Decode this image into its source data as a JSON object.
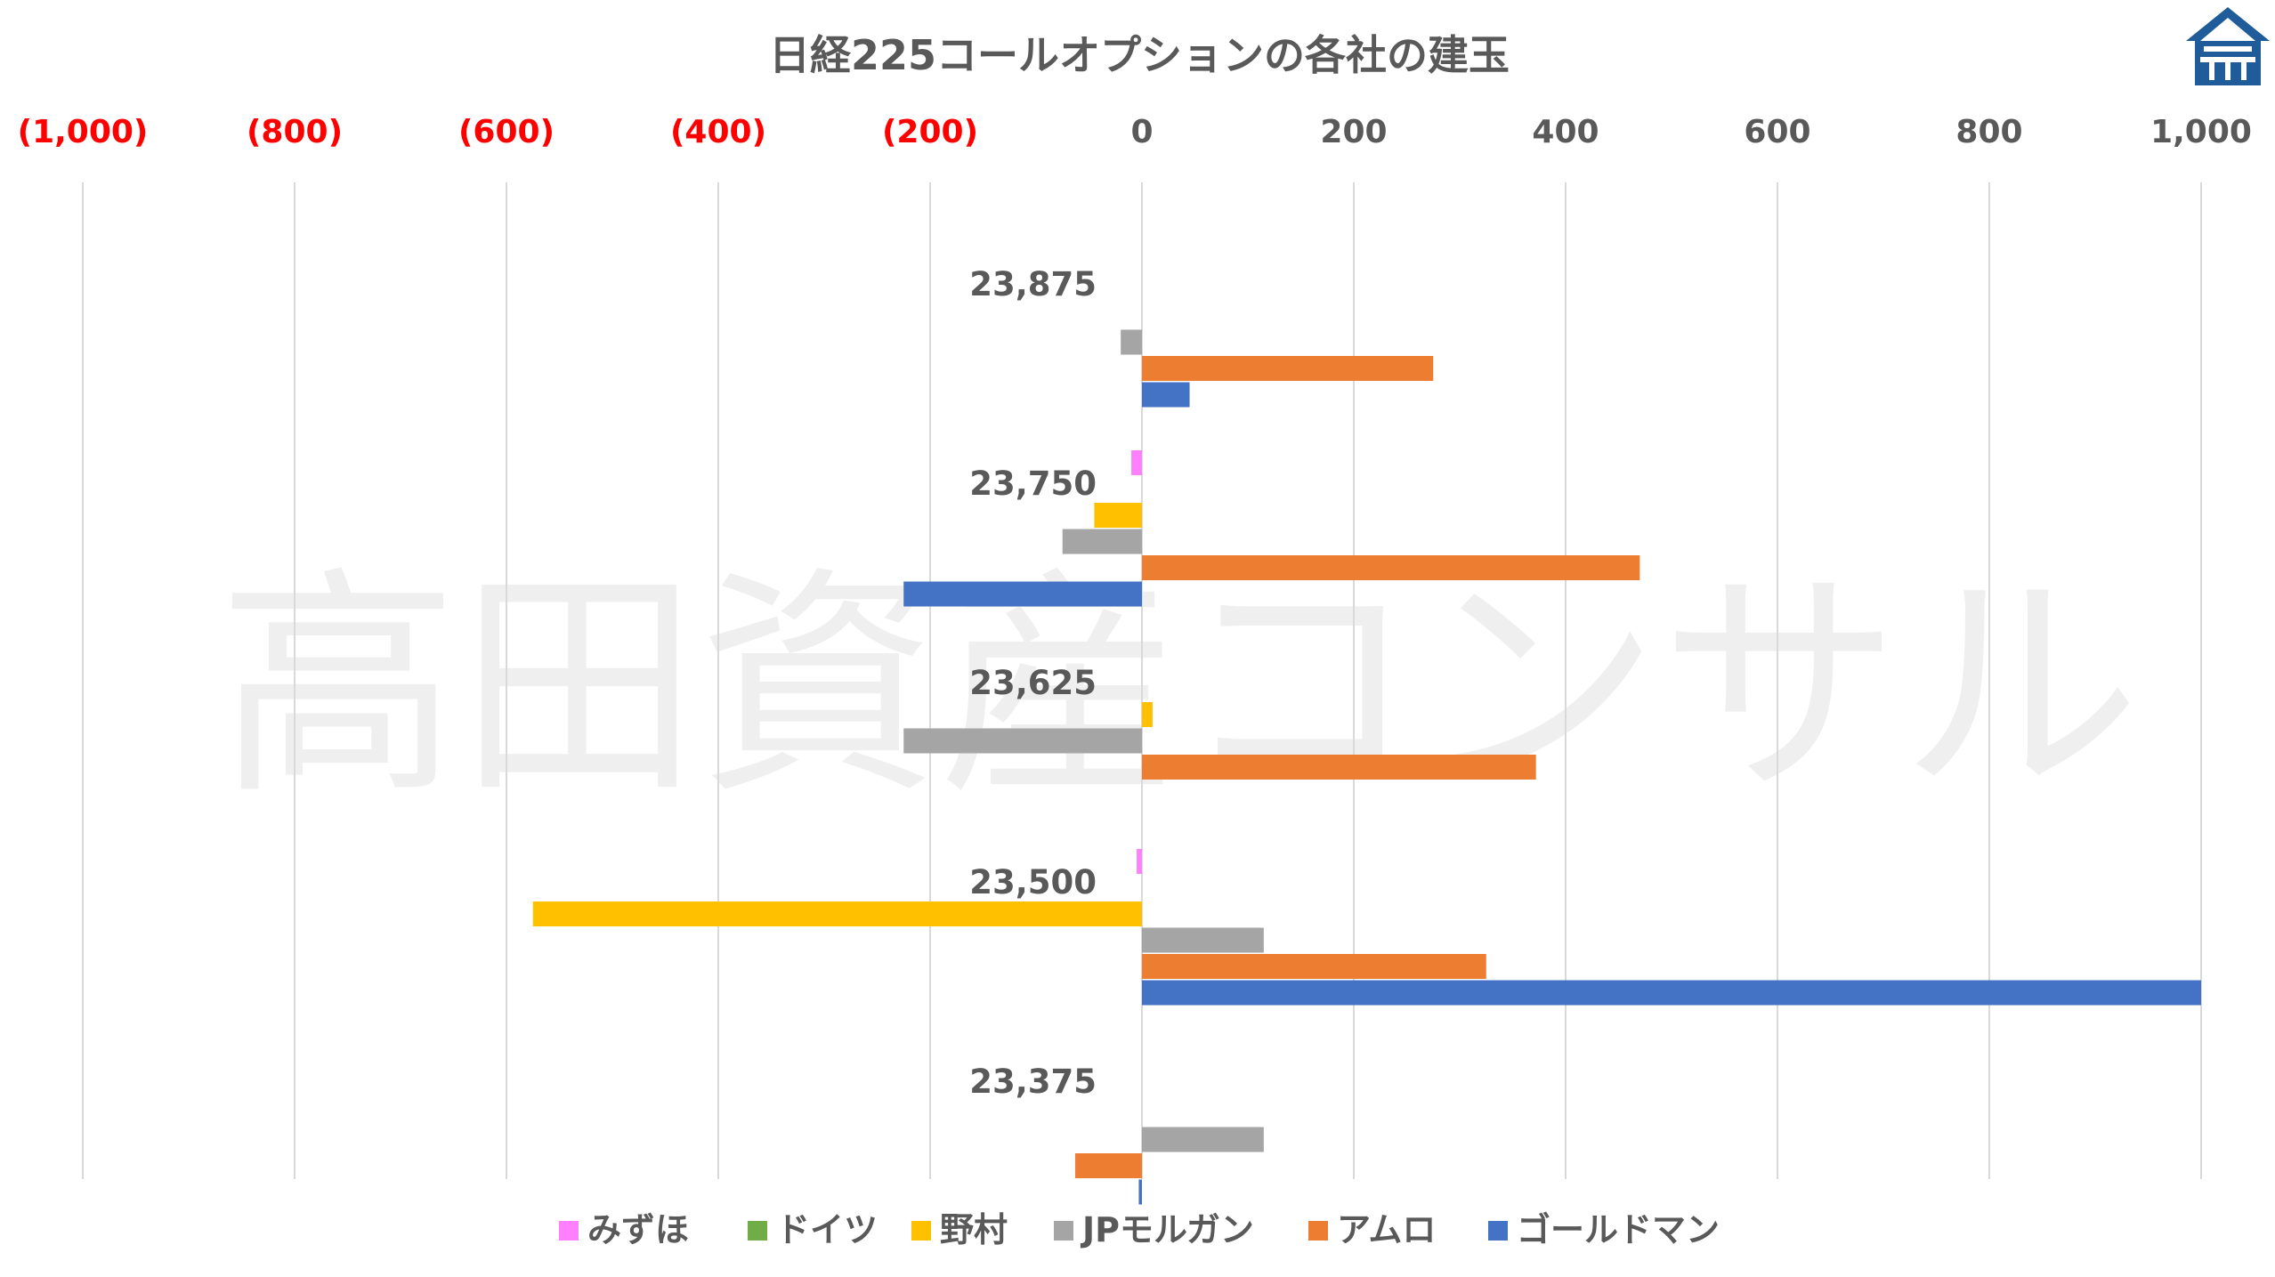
{
  "colors": {
    "title": "#595959",
    "axis_positive": "#595959",
    "axis_negative": "#ff0000",
    "grid": "#d9d9d9",
    "logo": "#1f5c99"
  },
  "logo": {
    "icon": "building-logo-icon"
  },
  "watermark": "高田資産コンサル",
  "chart_data": {
    "type": "bar",
    "orientation": "horizontal",
    "title": "日経225コールオプションの各社の建玉",
    "xlim": [
      -1000,
      1000
    ],
    "xticks": [
      -1000,
      -800,
      -600,
      -400,
      -200,
      0,
      200,
      400,
      600,
      800,
      1000
    ],
    "xtick_labels": [
      "(1,000)",
      "(800)",
      "(600)",
      "(400)",
      "(200)",
      "0",
      "200",
      "400",
      "600",
      "800",
      "1,000"
    ],
    "x_axis_position": "top",
    "grid": true,
    "legend_position": "bottom",
    "categories": [
      "23,875",
      "23,750",
      "23,625",
      "23,500",
      "23,375"
    ],
    "series": [
      {
        "name": "みずほ",
        "color": "#ff80ff",
        "values": [
          0,
          -10,
          0,
          -5,
          0
        ]
      },
      {
        "name": "ドイツ",
        "color": "#70ad47",
        "values": [
          0,
          0,
          0,
          0,
          0
        ]
      },
      {
        "name": "野村",
        "color": "#ffc000",
        "values": [
          0,
          -45,
          10,
          -575,
          0
        ]
      },
      {
        "name": "JPモルガン",
        "color": "#a5a5a5",
        "values": [
          -20,
          -75,
          -225,
          115,
          115
        ]
      },
      {
        "name": "アムロ",
        "color": "#ed7d31",
        "values": [
          275,
          470,
          372,
          325,
          -63
        ]
      },
      {
        "name": "ゴールドマン",
        "color": "#4472c4",
        "values": [
          45,
          -225,
          0,
          1000,
          -3
        ]
      }
    ]
  }
}
